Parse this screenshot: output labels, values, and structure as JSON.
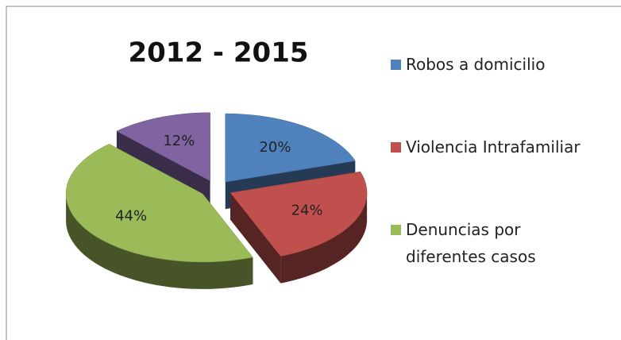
{
  "chart_data": {
    "type": "pie3d",
    "title": "2012 - 2015",
    "categories": [
      "Robos a domicilio",
      "Violencia Intrafamiliar",
      "Denuncias por diferentes casos",
      null
    ],
    "values": [
      20,
      24,
      44,
      12
    ],
    "value_labels": [
      "20%",
      "24%",
      "44%",
      "12%"
    ],
    "colors": [
      "#4f81bd",
      "#c0504d",
      "#9bbb59",
      "#8064a2"
    ],
    "legend": "right"
  }
}
